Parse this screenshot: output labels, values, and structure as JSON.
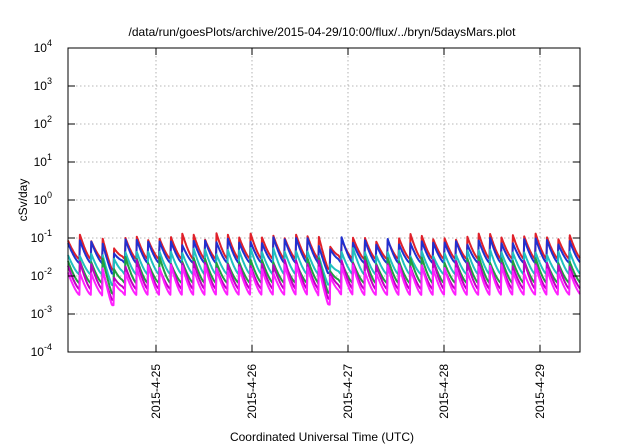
{
  "chart_data": {
    "type": "line",
    "title": "/data/run/goesPlots/archive/2015-04-29/10:00/flux/../bryn/5daysMars.plot",
    "xlabel": "Coordinated Universal Time (UTC)",
    "ylabel": "cSv/day",
    "y_scale": "log",
    "ylim": [
      0.0001,
      10000
    ],
    "y_tick_labels": [
      {
        "value": 0.0001,
        "base": "10",
        "exp": "-4"
      },
      {
        "value": 0.001,
        "base": "10",
        "exp": "-3"
      },
      {
        "value": 0.01,
        "base": "10",
        "exp": "-2"
      },
      {
        "value": 0.1,
        "base": "10",
        "exp": "-1"
      },
      {
        "value": 1,
        "base": "10",
        "exp": "0"
      },
      {
        "value": 10,
        "base": "10",
        "exp": "1"
      },
      {
        "value": 100,
        "base": "10",
        "exp": "2"
      },
      {
        "value": 1000,
        "base": "10",
        "exp": "3"
      },
      {
        "value": 10000,
        "base": "10",
        "exp": "4"
      }
    ],
    "xlim": [
      "2015-04-24T02:00",
      "2015-04-29T10:00"
    ],
    "x_ticks": [
      {
        "value": "2015-04-25T00:00",
        "label": "2015-4-25"
      },
      {
        "value": "2015-04-26T00:00",
        "label": "2015-4-26"
      },
      {
        "value": "2015-04-27T00:00",
        "label": "2015-4-27"
      },
      {
        "value": "2015-04-28T00:00",
        "label": "2015-4-28"
      },
      {
        "value": "2015-04-29T00:00",
        "label": "2015-4-29"
      }
    ],
    "grid": true,
    "legend": "none",
    "sawtooth_period_hours": 2.85,
    "dip_times": [
      "2015-04-24T13:00",
      "2015-04-26T19:00"
    ],
    "series": [
      {
        "color": "#e0202a",
        "peak": 0.11,
        "trough": 0.028
      },
      {
        "color": "#2030d0",
        "peak": 0.085,
        "trough": 0.022
      },
      {
        "color": "#20c0c0",
        "peak": 0.045,
        "trough": 0.011
      },
      {
        "color": "#20a040",
        "peak": 0.028,
        "trough": 0.0065
      },
      {
        "color": "#c000c0",
        "peak": 0.022,
        "trough": 0.0045
      },
      {
        "color": "#ff20ff",
        "peak": 0.016,
        "trough": 0.0032
      }
    ]
  }
}
